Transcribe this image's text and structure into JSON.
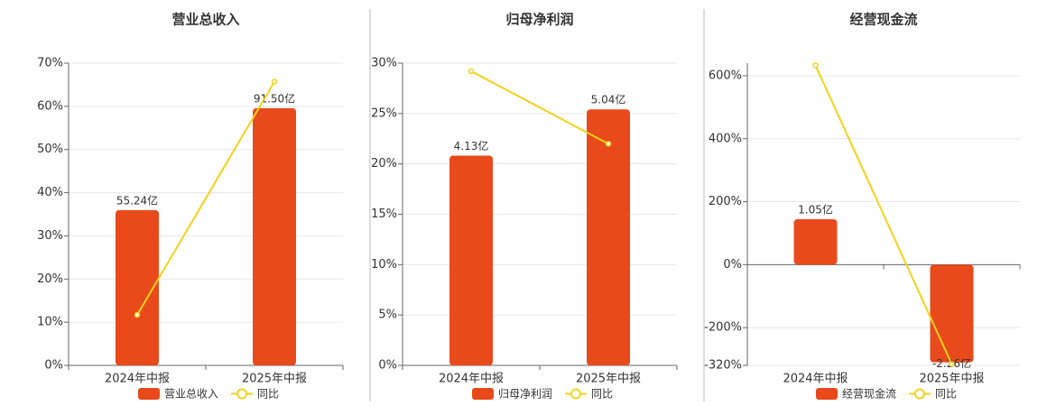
{
  "chart_data": [
    {
      "type": "bar-line",
      "title": "营业总收入",
      "categories": [
        "2024年中报",
        "2025年中报"
      ],
      "series": [
        {
          "name": "营业总收入",
          "color": "#e84a1b",
          "axis": "y2",
          "values": [
            55.24,
            91.5
          ],
          "value_labels": [
            "55.24亿",
            "91.50亿"
          ]
        },
        {
          "name": "同比",
          "color": "#f2d21a",
          "values": [
            11.7,
            65.7
          ]
        }
      ],
      "ylim": [
        0,
        70
      ],
      "yticks": [
        {
          "value": 0,
          "label": "0%"
        },
        {
          "value": 10,
          "label": "10%"
        },
        {
          "value": 20,
          "label": "20%"
        },
        {
          "value": 30,
          "label": "30%"
        },
        {
          "value": 40,
          "label": "40%"
        },
        {
          "value": 50,
          "label": "50%"
        },
        {
          "value": 60,
          "label": "60%"
        },
        {
          "value": 70,
          "label": "70%"
        }
      ],
      "y2lim": [
        0,
        107.5
      ],
      "grid": true
    },
    {
      "type": "bar-line",
      "title": "归母净利润",
      "categories": [
        "2024年中报",
        "2025年中报"
      ],
      "series": [
        {
          "name": "归母净利润",
          "color": "#e84a1b",
          "axis": "y2",
          "values": [
            4.13,
            5.04
          ],
          "value_labels": [
            "4.13亿",
            "5.04亿"
          ]
        },
        {
          "name": "同比",
          "color": "#f2d21a",
          "values": [
            29.2,
            22.0
          ]
        }
      ],
      "ylim": [
        0,
        30
      ],
      "yticks": [
        {
          "value": 0,
          "label": "0%"
        },
        {
          "value": 5,
          "label": "5%"
        },
        {
          "value": 10,
          "label": "10%"
        },
        {
          "value": 15,
          "label": "15%"
        },
        {
          "value": 20,
          "label": "20%"
        },
        {
          "value": 25,
          "label": "25%"
        },
        {
          "value": 30,
          "label": "30%"
        }
      ],
      "y2lim": [
        0,
        5.95
      ],
      "grid": true
    },
    {
      "type": "bar-line",
      "title": "经营现金流",
      "categories": [
        "2024年中报",
        "2025年中报"
      ],
      "series": [
        {
          "name": "经营现金流",
          "color": "#e84a1b",
          "axis": "y2",
          "values": [
            1.05,
            -2.26
          ],
          "value_labels": [
            "1.05亿",
            "-2.26亿"
          ]
        },
        {
          "name": "同比",
          "color": "#f2d21a",
          "values": [
            633,
            -316
          ]
        }
      ],
      "ylim": [
        -320,
        640
      ],
      "yticks": [
        {
          "value": -320,
          "label": "-320%"
        },
        {
          "value": -200,
          "label": "-200%"
        },
        {
          "value": 0,
          "label": "0%"
        },
        {
          "value": 200,
          "label": "200%"
        },
        {
          "value": 400,
          "label": "400%"
        },
        {
          "value": 600,
          "label": "600%"
        }
      ],
      "y2lim": [
        -2.33,
        4.66
      ],
      "grid": true
    }
  ]
}
